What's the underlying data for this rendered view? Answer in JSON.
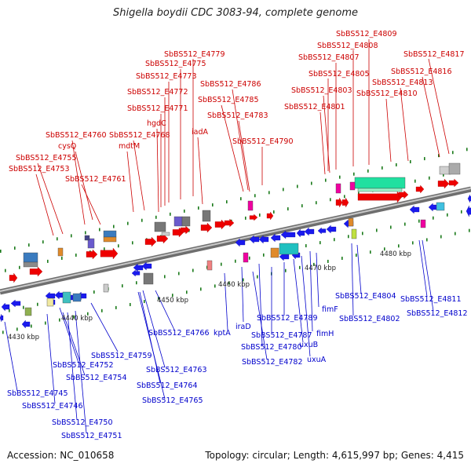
{
  "title": "Shigella boydii CDC 3083-94, complete genome",
  "footer": {
    "accession": "Accession: NC_010658",
    "topology": "Topology: circular; Length: 4,615,997 bp; Genes: 4,415"
  },
  "colors": {
    "forward_label": "#cc0000",
    "reverse_label": "#0000cc",
    "backbone": "#8a8a8a",
    "forward_gene": "#ee0000",
    "reverse_gene": "#1a1aee",
    "tick": "#1a7a1a"
  },
  "position_ticks": [
    "4430 kbp",
    "4440 kbp",
    "4450 kbp",
    "4460 kbp",
    "4470 kbp",
    "4480 kbp"
  ],
  "forward_labels": [
    "SbBS512_E4809",
    "SbBS512_E4808",
    "SbBS512_E4807",
    "SbBS512_E4817",
    "SbBS512_E4779",
    "SbBS512_E4775",
    "SbBS512_E4816",
    "SbBS512_E4773",
    "SbBS512_E4805",
    "SbBS512_E4813",
    "SbBS512_E4786",
    "SbBS512_E4772",
    "SbBS512_E4803",
    "SbBS512_E4810",
    "SbBS512_E4785",
    "SbBS512_E4771",
    "SbBS512_E4801",
    "SbBS512_E4783",
    "hgdC",
    "iadA",
    "SbBS512_E4760",
    "SbBS512_E4768",
    "cysQ",
    "SbBS512_E4790",
    "mdtM",
    "SbBS512_E4755",
    "SbBS512_E4753",
    "SbBS512_E4761"
  ],
  "reverse_labels": [
    "SbBS512_E4804",
    "SbBS512_E4811",
    "SbBS512_E4802",
    "SbBS512_E4812",
    "fimF",
    "SbBS512_E4789",
    "SbBS512_E4787",
    "fimH",
    "iraD",
    "kptA",
    "uxuB",
    "SbBS512_E4766",
    "SbBS512_E4780",
    "uxuA",
    "SbBS512_E4759",
    "SbBS512_E4782",
    "SbBS512_E4752",
    "SbBS512_E4763",
    "SbBS512_E4754",
    "SbBS512_E4764",
    "SbBS512_E4745",
    "SbBS512_E4765",
    "SbBS512_E4746",
    "SbBS512_E4750",
    "SbBS512_E4751"
  ]
}
